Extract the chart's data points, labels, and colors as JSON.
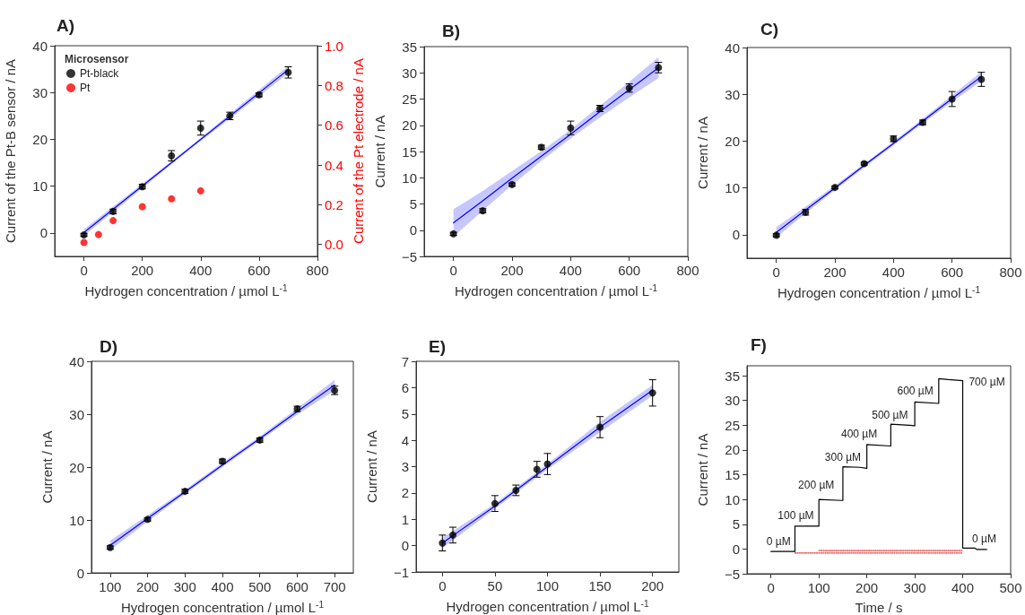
{
  "chart_data": [
    {
      "type": "scatter",
      "title": "A)",
      "xlabel": "Hydrogen concentration / µmol L$^{-1}$",
      "ylabel": "Current of the Pt-B sensor / nA",
      "y2label": "Current of the Pt electrode / nA",
      "legend_title": "Microsensor",
      "legend": "top left",
      "marker": "circle",
      "xlim": [
        -100,
        800
      ],
      "xticks": [
        0,
        200,
        400,
        600,
        800
      ],
      "ylim": [
        -5,
        40
      ],
      "yticks": [
        0,
        10,
        20,
        30,
        40
      ],
      "y2lim": [
        -0.06,
        1.0
      ],
      "y2ticks": [
        {
          "value": 0,
          "label": "0.0"
        },
        0.2,
        0.4,
        0.6,
        0.8,
        {
          "value": 1,
          "label": "1.0"
        }
      ],
      "series": [
        {
          "type": "line",
          "marker": "none",
          "color": "#0000ff",
          "x": [
            0,
            350,
            700
          ],
          "values": [
            0.1,
            17.5,
            34.9
          ],
          "lower": [
            -0.6,
            17.2,
            34.1
          ],
          "upper": [
            0.8,
            17.8,
            35.7
          ]
        },
        {
          "name": "Pt-black",
          "color": "#000000",
          "x": [
            0,
            100,
            200,
            300,
            400,
            500,
            600,
            700
          ],
          "values": [
            -0.4,
            4.6,
            9.9,
            16.5,
            22.4,
            25.0,
            29.5,
            34.3
          ],
          "errors": [
            0.3,
            0.5,
            0.5,
            1.1,
            1.5,
            0.8,
            0.4,
            1.2
          ]
        },
        {
          "name": "Pt",
          "color": "#ff0000",
          "axis": "y2",
          "x": [
            0,
            50,
            100,
            200,
            300,
            400
          ],
          "values": [
            0.01,
            0.05,
            0.12,
            0.19,
            0.23,
            0.27
          ]
        }
      ]
    },
    {
      "type": "scatter",
      "title": "B)",
      "xlabel": "Hydrogen concentration / µmol L$^{-1}$",
      "ylabel": "Current / nA",
      "marker": "circle",
      "xlim": [
        -100,
        800
      ],
      "xticks": [
        0,
        200,
        400,
        600,
        800
      ],
      "ylim": [
        -5,
        35
      ],
      "yticks": [
        -5,
        0,
        5,
        10,
        15,
        20,
        25,
        30,
        35
      ],
      "series": [
        {
          "type": "line",
          "marker": "none",
          "color": "#0000ff",
          "x": [
            0,
            100,
            200,
            300,
            400,
            500,
            600,
            700
          ],
          "values": [
            1.4,
            5.6,
            9.9,
            14.1,
            18.3,
            22.6,
            26.8,
            31.0
          ],
          "lower": [
            -1.2,
            3.7,
            8.6,
            13.2,
            17.5,
            21.5,
            25.3,
            29.0
          ],
          "upper": [
            4.0,
            7.5,
            11.3,
            15.1,
            19.2,
            23.7,
            28.3,
            33.0
          ]
        },
        {
          "color": "#000000",
          "x": [
            0,
            100,
            200,
            300,
            400,
            500,
            600,
            700
          ],
          "values": [
            -0.7,
            3.7,
            8.7,
            15.8,
            19.5,
            23.2,
            27.1,
            31.0
          ],
          "errors": [
            0.3,
            0.4,
            0.3,
            0.4,
            1.3,
            0.6,
            0.8,
            1.0
          ]
        }
      ]
    },
    {
      "type": "scatter",
      "title": "C)",
      "xlabel": "Hydrogen concentration / µmol L$^{-1}$",
      "ylabel": "Current / nA",
      "marker": "circle",
      "xlim": [
        -100,
        800
      ],
      "xticks": [
        0,
        200,
        400,
        600,
        800
      ],
      "ylim": [
        -5,
        40
      ],
      "yticks": [
        0,
        10,
        20,
        30,
        40
      ],
      "series": [
        {
          "type": "line",
          "marker": "none",
          "color": "#0000ff",
          "x": [
            0,
            100,
            200,
            300,
            400,
            500,
            600,
            700
          ],
          "values": [
            0.5,
            5.3,
            10.0,
            14.8,
            19.5,
            24.3,
            29.1,
            33.8
          ],
          "lower": [
            -0.6,
            4.6,
            9.5,
            14.4,
            19.1,
            23.8,
            28.4,
            32.8
          ],
          "upper": [
            1.6,
            6.0,
            10.5,
            15.2,
            19.9,
            24.8,
            29.8,
            34.8
          ]
        },
        {
          "color": "#000000",
          "x": [
            0,
            100,
            200,
            300,
            400,
            500,
            600,
            700
          ],
          "values": [
            -0.1,
            4.8,
            10.1,
            15.2,
            20.5,
            24.0,
            29.0,
            33.2
          ],
          "errors": [
            0.3,
            0.6,
            0.3,
            0.3,
            0.6,
            0.5,
            1.6,
            1.5
          ]
        }
      ]
    },
    {
      "type": "scatter",
      "title": "D)",
      "xlabel": "Hydrogen concentration / µmol L$^{-1}$",
      "ylabel": "Current / nA",
      "marker": "circle",
      "xlim": [
        50,
        750
      ],
      "xticks": [
        100,
        200,
        300,
        400,
        500,
        600,
        700
      ],
      "ylim": [
        0,
        40
      ],
      "yticks": [
        0,
        10,
        20,
        30,
        40
      ],
      "series": [
        {
          "type": "line",
          "marker": "none",
          "color": "#0000ff",
          "x": [
            100,
            200,
            300,
            400,
            500,
            600,
            700
          ],
          "values": [
            5.2,
            10.3,
            15.3,
            20.4,
            25.4,
            30.5,
            35.5
          ],
          "lower": [
            4.3,
            9.7,
            14.9,
            20.0,
            25.0,
            29.9,
            34.5
          ],
          "upper": [
            6.1,
            10.9,
            15.7,
            20.8,
            25.8,
            31.1,
            36.5
          ]
        },
        {
          "color": "#000000",
          "x": [
            100,
            200,
            300,
            400,
            500,
            600,
            700
          ],
          "values": [
            4.8,
            10.1,
            15.4,
            21.1,
            25.1,
            31.0,
            34.5
          ],
          "errors": [
            0.3,
            0.3,
            0.4,
            0.4,
            0.4,
            0.5,
            0.8
          ]
        }
      ]
    },
    {
      "type": "scatter",
      "title": "E)",
      "xlabel": "Hydrogen concentration / µmol L$^{-1}$",
      "ylabel": "Current / nA",
      "marker": "circle",
      "xlim": [
        -25,
        225
      ],
      "xticks": [
        0,
        50,
        100,
        150,
        200
      ],
      "ylim": [
        -1,
        7
      ],
      "yticks": [
        -1,
        0,
        1,
        2,
        3,
        4,
        5,
        6,
        7
      ],
      "series": [
        {
          "type": "line",
          "marker": "none",
          "color": "#0000ff",
          "x": [
            0,
            50,
            100,
            150,
            200
          ],
          "values": [
            0.1,
            1.5,
            3.0,
            4.5,
            5.9
          ],
          "lower": [
            -0.1,
            1.4,
            2.9,
            4.3,
            5.7
          ],
          "upper": [
            0.3,
            1.6,
            3.1,
            4.7,
            6.1
          ]
        },
        {
          "color": "#000000",
          "x": [
            0,
            10,
            50,
            70,
            90,
            100,
            150,
            200
          ],
          "values": [
            0.1,
            0.4,
            1.6,
            2.1,
            2.9,
            3.1,
            4.5,
            5.8
          ],
          "errors": [
            0.3,
            0.3,
            0.3,
            0.2,
            0.3,
            0.4,
            0.4,
            0.5
          ]
        }
      ]
    },
    {
      "type": "line",
      "title": "F)",
      "xlabel": "Time / s",
      "ylabel": "Current / nA",
      "marker": "none",
      "xlim": [
        -50,
        500
      ],
      "xticks": [
        0,
        100,
        200,
        300,
        400,
        500
      ],
      "ylim": [
        -5,
        37
      ],
      "yticks": [
        -5,
        0,
        5,
        10,
        15,
        20,
        25,
        30,
        35
      ],
      "series": [
        {
          "color": "#000000",
          "x": [
            0,
            50,
            50,
            100,
            100,
            148,
            150,
            150,
            185,
            200,
            200,
            250,
            250,
            300,
            300,
            350,
            350,
            370,
            400,
            400,
            425,
            430,
            450
          ],
          "values": [
            -0.5,
            -0.5,
            4.6,
            4.6,
            10.0,
            9.8,
            9.8,
            16.6,
            16.5,
            16.3,
            21.1,
            20.8,
            25.2,
            24.9,
            29.7,
            29.4,
            34.4,
            34.2,
            34.0,
            0.2,
            0.2,
            -0.1,
            -0.1
          ]
        },
        {
          "color": "#e03030",
          "line_style": "dotted",
          "x": [
            50,
            400
          ],
          "values": [
            -0.8,
            -0.8
          ]
        },
        {
          "color": "#e03030",
          "line_style": "dotted",
          "x": [
            100,
            400
          ],
          "values": [
            -0.3,
            -0.3
          ]
        }
      ],
      "annotations": [
        {
          "text": "0 µM",
          "x": 0,
          "y": -0.5
        },
        {
          "text": "100 µM",
          "x": 50,
          "y": 4.6
        },
        {
          "text": "200 µM",
          "x": 100,
          "y": 10.0
        },
        {
          "text": "300 µM",
          "x": 150,
          "y": 16.6
        },
        {
          "text": "400 µM",
          "x": 200,
          "y": 21.1
        },
        {
          "text": "500 µM",
          "x": 250,
          "y": 25.2
        },
        {
          "text": "600 µM",
          "x": 300,
          "y": 29.7
        },
        {
          "text": "700 µM",
          "x": 400,
          "y": 34.0
        },
        {
          "text": "0 µM",
          "x": 400,
          "y": 0.2
        }
      ]
    }
  ]
}
